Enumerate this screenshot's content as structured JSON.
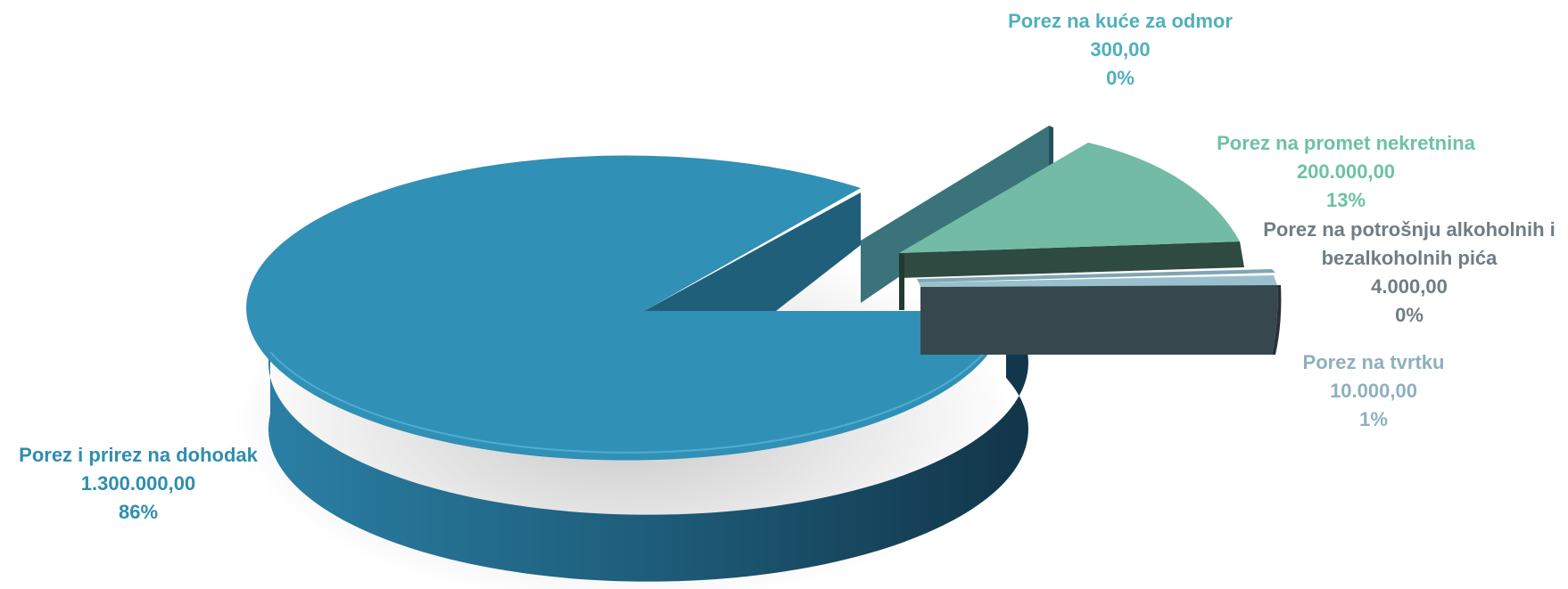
{
  "chart_data": {
    "type": "pie",
    "title": "",
    "style": "3d-exploded",
    "slices": [
      {
        "name": "Porez i prirez na dohodak",
        "value": "1.300.000,00",
        "percent": "86%",
        "amount": 1300000,
        "color": "#3090B6",
        "dark": "#1F5F7A",
        "label_color": "#2F8DB0"
      },
      {
        "name": "Porez na kuće za odmor",
        "value": "300,00",
        "percent": "0%",
        "amount": 300,
        "color": "#3A747A",
        "dark": "#27515A",
        "label_color": "#4FB0BC"
      },
      {
        "name": "Porez na promet nekretnina",
        "value": "200.000,00",
        "percent": "13%",
        "amount": 200000,
        "color": "#73BBA4",
        "dark": "#2F4A40",
        "label_color": "#6EC2A3"
      },
      {
        "name": "Porez na potrošnju alkoholnih i bezalkoholnih pića",
        "value": "4.000,00",
        "percent": "0%",
        "amount": 4000,
        "color": "#7FA6B4",
        "dark": "#4A6470",
        "label_color": "#6F7D84"
      },
      {
        "name": "Porez na tvrtku",
        "value": "10.000,00",
        "percent": "1%",
        "amount": 10000,
        "color": "#37474E",
        "dark": "#263238",
        "label_color": "#8EB0BE"
      }
    ]
  }
}
